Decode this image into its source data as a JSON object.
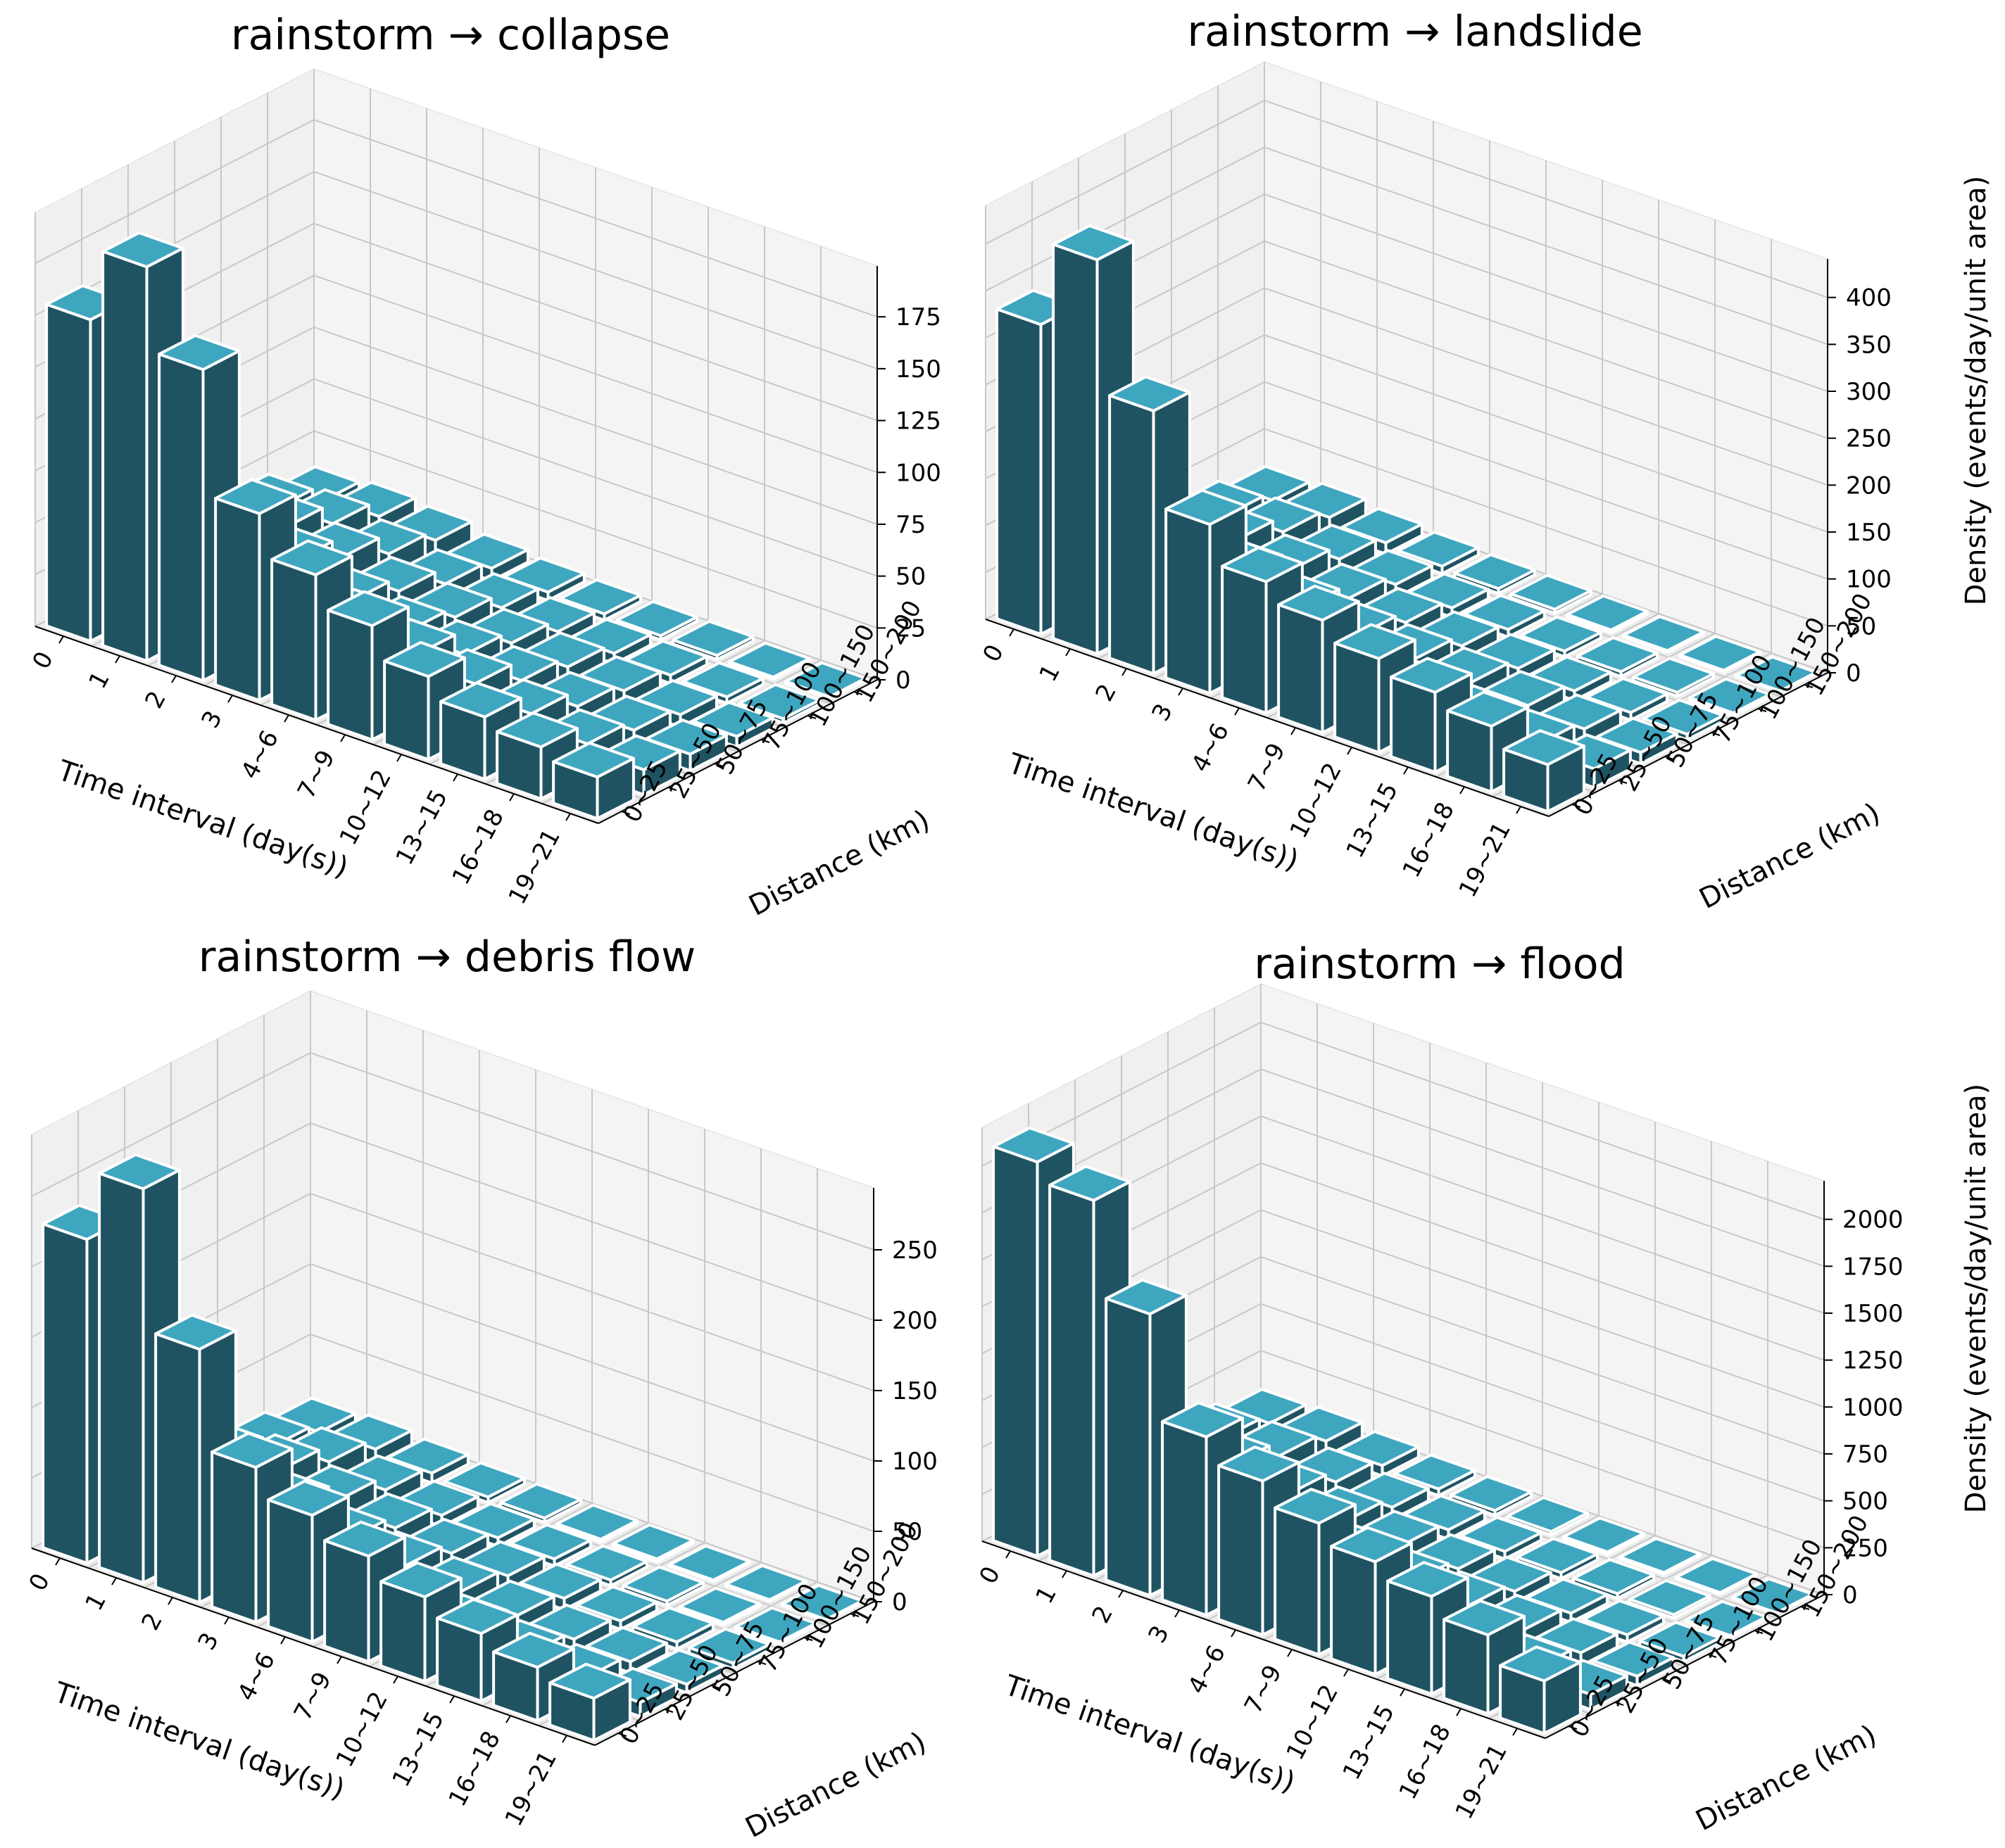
{
  "colors": {
    "bar_side": "#1f5362",
    "bar_top": "#3fa6bf",
    "edge": "#ffffff"
  },
  "chart_data": [
    {
      "type": "bar3d",
      "title": "rainstorm → collapse",
      "xlabel": "Time interval (day(s))",
      "ylabel": "Distance (km)",
      "zlabel": "",
      "time_labels": [
        "0",
        "1",
        "2",
        "3",
        "4~6",
        "7~9",
        "10~12",
        "13~15",
        "16~18",
        "19~21"
      ],
      "distance_labels": [
        "0~25",
        "25~50",
        "50~75",
        "75~100",
        "100~150",
        "150~200"
      ],
      "z_ticks": [
        "0",
        "25",
        "50",
        "75",
        "100",
        "125",
        "150",
        "175"
      ],
      "zlim": [
        0,
        190
      ],
      "values": [
        [
          155,
          190,
          150,
          90,
          70,
          55,
          40,
          30,
          25,
          20
        ],
        [
          70,
          75,
          60,
          45,
          35,
          30,
          25,
          20,
          15,
          12
        ],
        [
          45,
          45,
          35,
          25,
          20,
          18,
          15,
          12,
          10,
          8
        ],
        [
          25,
          30,
          25,
          18,
          15,
          12,
          10,
          8,
          6,
          5
        ],
        [
          18,
          20,
          15,
          10,
          8,
          6,
          5,
          4,
          3,
          2
        ],
        [
          10,
          12,
          10,
          6,
          4,
          3,
          2,
          2,
          1,
          1
        ]
      ]
    },
    {
      "type": "bar3d",
      "title": "rainstorm → landslide",
      "xlabel": "Time interval (day(s))",
      "ylabel": "Distance (km)",
      "zlabel": "Density (events/day/unit area)",
      "time_labels": [
        "0",
        "1",
        "2",
        "3",
        "4~6",
        "7~9",
        "10~12",
        "13~15",
        "16~18",
        "19~21"
      ],
      "distance_labels": [
        "0~25",
        "25~50",
        "50~75",
        "75~100",
        "100~150",
        "150~200"
      ],
      "z_ticks": [
        "0",
        "50",
        "100",
        "150",
        "200",
        "250",
        "300",
        "350",
        "400"
      ],
      "zlim": [
        0,
        420
      ],
      "values": [
        [
          330,
          420,
          280,
          180,
          140,
          120,
          100,
          85,
          70,
          50
        ],
        [
          90,
          100,
          85,
          65,
          50,
          40,
          35,
          30,
          25,
          20
        ],
        [
          60,
          70,
          55,
          40,
          32,
          28,
          24,
          20,
          16,
          12
        ],
        [
          40,
          45,
          35,
          25,
          20,
          16,
          13,
          10,
          8,
          6
        ],
        [
          25,
          28,
          20,
          14,
          10,
          8,
          6,
          5,
          4,
          3
        ],
        [
          15,
          18,
          12,
          8,
          5,
          4,
          3,
          2,
          2,
          1
        ]
      ]
    },
    {
      "type": "bar3d",
      "title": "rainstorm → debris flow",
      "xlabel": "Time interval (day(s))",
      "ylabel": "Distance (km)",
      "zlabel": "",
      "time_labels": [
        "0",
        "1",
        "2",
        "3",
        "4~6",
        "7~9",
        "10~12",
        "13~15",
        "16~18",
        "19~21"
      ],
      "distance_labels": [
        "0~25",
        "25~50",
        "50~75",
        "75~100",
        "100~150",
        "150~200"
      ],
      "z_ticks": [
        "0",
        "50",
        "100",
        "150",
        "200",
        "250"
      ],
      "zlim": [
        0,
        280
      ],
      "values": [
        [
          230,
          280,
          180,
          110,
          90,
          75,
          60,
          48,
          38,
          30
        ],
        [
          60,
          70,
          55,
          40,
          30,
          25,
          20,
          16,
          13,
          10
        ],
        [
          40,
          45,
          35,
          25,
          20,
          16,
          13,
          10,
          8,
          6
        ],
        [
          25,
          30,
          22,
          16,
          12,
          10,
          8,
          6,
          5,
          4
        ],
        [
          15,
          18,
          12,
          8,
          6,
          5,
          4,
          3,
          2,
          2
        ],
        [
          8,
          10,
          7,
          4,
          3,
          2,
          2,
          1,
          1,
          1
        ]
      ]
    },
    {
      "type": "bar3d",
      "title": "rainstorm → flood",
      "xlabel": "Time interval (day(s))",
      "ylabel": "Distance (km)",
      "zlabel": "Density (events/day/unit area)",
      "time_labels": [
        "0",
        "1",
        "2",
        "3",
        "4~6",
        "7~9",
        "10~12",
        "13~15",
        "16~18",
        "19~21"
      ],
      "distance_labels": [
        "0~25",
        "25~50",
        "50~75",
        "75~100",
        "100~150",
        "150~200"
      ],
      "z_ticks": [
        "0",
        "250",
        "500",
        "750",
        "1000",
        "1250",
        "1500",
        "1750",
        "2000"
      ],
      "zlim": [
        0,
        2100
      ],
      "values": [
        [
          2100,
          2000,
          1500,
          950,
          820,
          700,
          600,
          520,
          420,
          280
        ],
        [
          500,
          450,
          400,
          300,
          250,
          200,
          170,
          140,
          110,
          80
        ],
        [
          320,
          330,
          260,
          200,
          160,
          130,
          110,
          90,
          70,
          50
        ],
        [
          200,
          210,
          160,
          120,
          95,
          75,
          60,
          48,
          38,
          28
        ],
        [
          120,
          130,
          95,
          65,
          50,
          40,
          32,
          25,
          18,
          12
        ],
        [
          70,
          80,
          55,
          35,
          25,
          18,
          14,
          10,
          8,
          5
        ]
      ]
    }
  ]
}
